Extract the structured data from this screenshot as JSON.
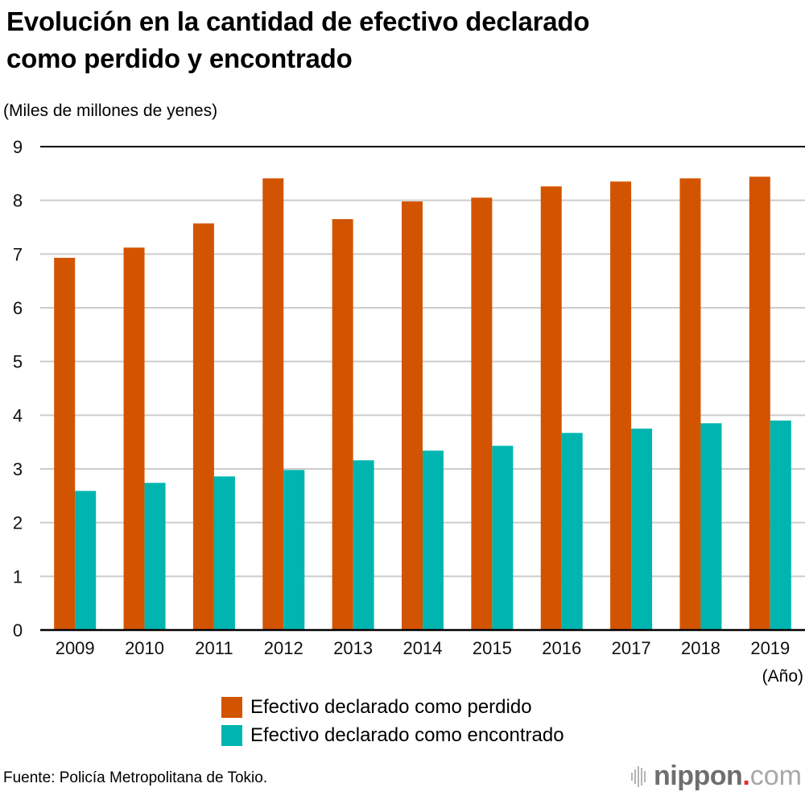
{
  "title_line1": "Evolución en la cantidad de efectivo declarado",
  "title_line2": "como perdido y encontrado",
  "source": "Fuente: Policía Metropolitana de Tokio.",
  "logo": {
    "icon": "sound-bars-icon",
    "main": "nippon",
    "dot": ".",
    "tld": "com"
  },
  "colors": {
    "perdido": "#D35400",
    "encontrado": "#00B5B0",
    "grid": "#cccccc",
    "axis": "#000000"
  },
  "chart_data": {
    "type": "bar",
    "title": "Evolución en la cantidad de efectivo declarado como perdido y encontrado",
    "ylabel": "(Miles de millones de yenes)",
    "xlabel": "(Año)",
    "categories": [
      "2009",
      "2010",
      "2011",
      "2012",
      "2013",
      "2014",
      "2015",
      "2016",
      "2017",
      "2018",
      "2019"
    ],
    "series": [
      {
        "name": "Efectivo declarado como perdido",
        "color": "#D35400",
        "values": [
          6.93,
          7.12,
          7.57,
          8.41,
          7.65,
          7.98,
          8.05,
          8.26,
          8.35,
          8.41,
          8.44
        ]
      },
      {
        "name": "Efectivo declarado como encontrado",
        "color": "#00B5B0",
        "values": [
          2.59,
          2.74,
          2.86,
          2.98,
          3.16,
          3.34,
          3.43,
          3.67,
          3.75,
          3.85,
          3.9
        ]
      }
    ],
    "ylim": [
      0,
      9
    ],
    "yticks": [
      "0",
      "1",
      "2",
      "3",
      "4",
      "5",
      "6",
      "7",
      "8",
      "9"
    ],
    "grid": true,
    "legend_position": "bottom"
  }
}
